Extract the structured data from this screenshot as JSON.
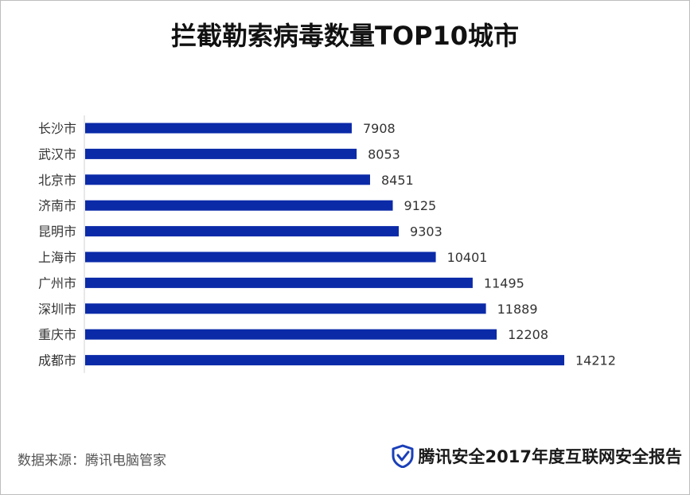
{
  "title": "拦截勒索病毒数量TOP10城市",
  "chart_data": {
    "type": "bar",
    "orientation": "horizontal",
    "categories": [
      "长沙市",
      "武汉市",
      "北京市",
      "济南市",
      "昆明市",
      "上海市",
      "广州市",
      "深圳市",
      "重庆市",
      "成都市"
    ],
    "values": [
      7908,
      8053,
      8451,
      9125,
      9303,
      10401,
      11495,
      11889,
      12208,
      14212
    ],
    "title": "拦截勒索病毒数量TOP10城市",
    "xlabel": "",
    "ylabel": "",
    "xlim": [
      0,
      14212
    ],
    "grid": false,
    "legend": "none",
    "bar_color": "#0a2aa8",
    "data_labels": true
  },
  "footer": {
    "source": "数据来源：腾讯电脑管家",
    "brand": "腾讯安全2017年度互联网安全报告",
    "brand_icon": "shield-check-icon",
    "brand_color": "#1a3fb8"
  }
}
